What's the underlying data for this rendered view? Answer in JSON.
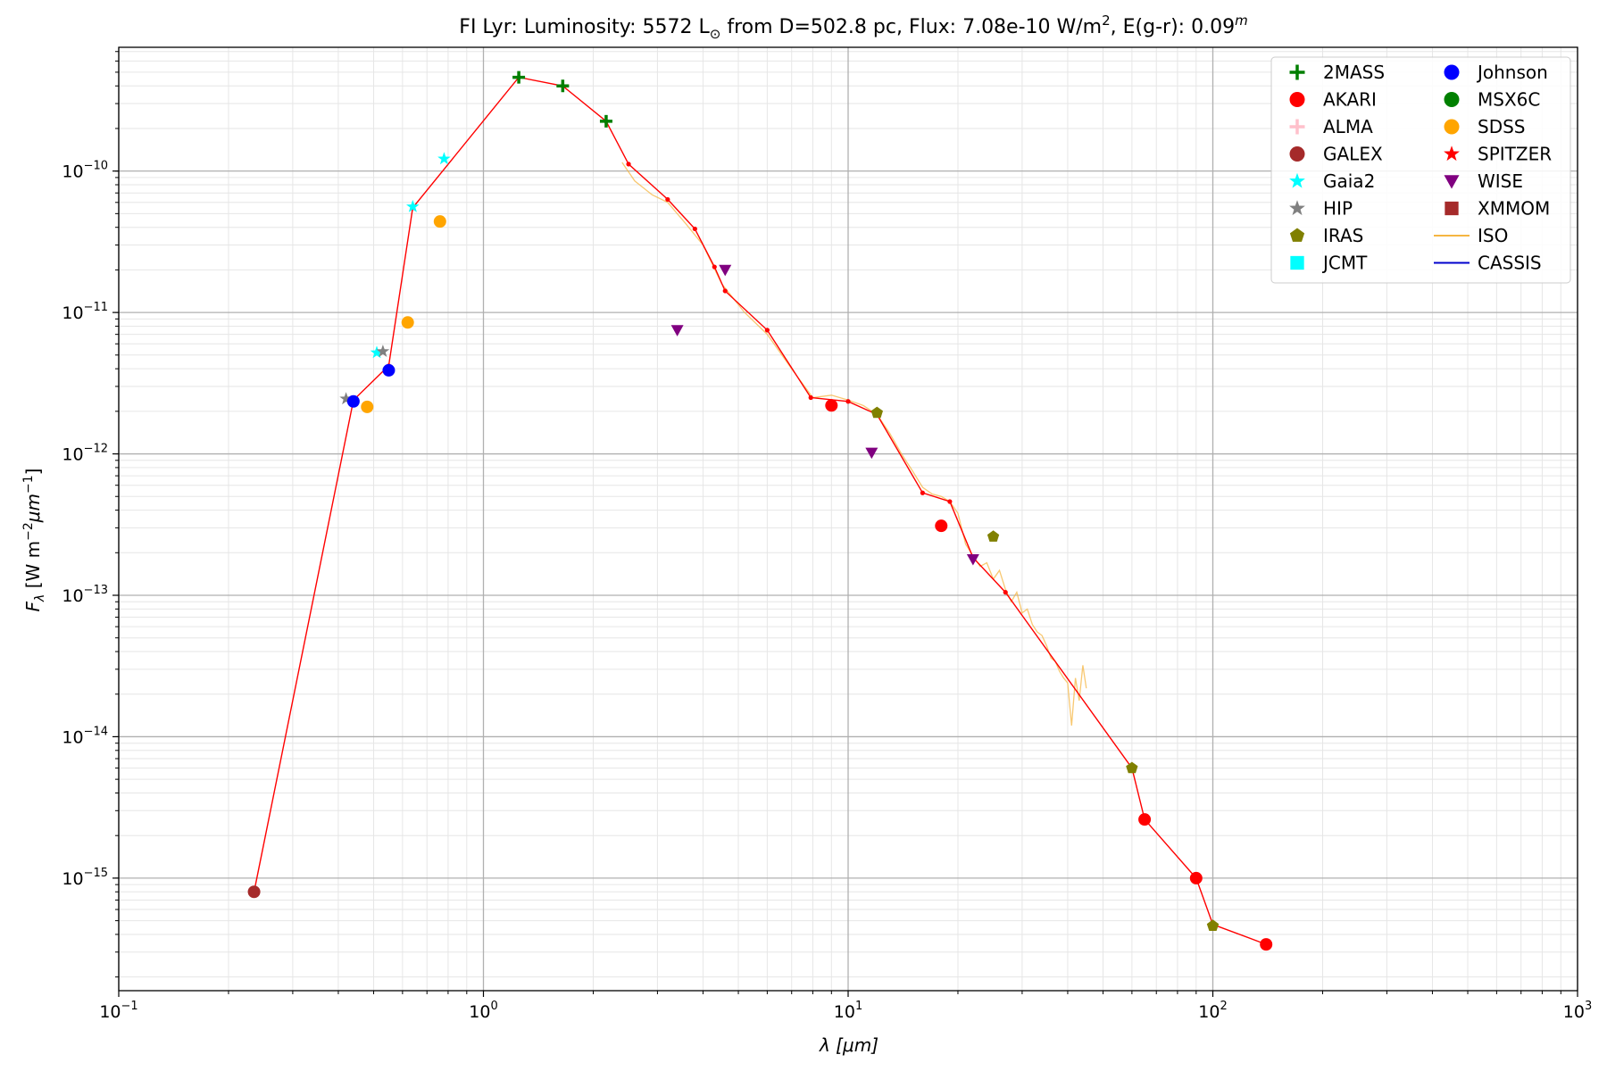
{
  "chart_data": {
    "type": "scatter",
    "title": {
      "main": "FI Lyr:  Luminosity: 5572 L",
      "sun_symbol": "⊙",
      "mid": " from D=502.8 pc, Flux: 7.08e-10 W/m",
      "sup1": "2",
      "mid2": ", E(g-r): 0.09",
      "sup2": "m"
    },
    "xlabel": "λ [μm]",
    "ylabel": "F_λ [W m^-2 μm^-1]",
    "xscale": "log",
    "yscale": "log",
    "xlim": [
      0.1,
      1000
    ],
    "ylim": [
      1.6e-16,
      7.5e-10
    ],
    "grid": true,
    "legend_position": "top-right",
    "x_ticks": [
      {
        "value": 0.1,
        "base": "10",
        "exp": "−1"
      },
      {
        "value": 1,
        "base": "10",
        "exp": "0"
      },
      {
        "value": 10,
        "base": "10",
        "exp": "1"
      },
      {
        "value": 100,
        "base": "10",
        "exp": "2"
      },
      {
        "value": 1000,
        "base": "10",
        "exp": "3"
      }
    ],
    "y_ticks": [
      {
        "value": 1e-15,
        "base": "10",
        "exp": "−15"
      },
      {
        "value": 1e-14,
        "base": "10",
        "exp": "−14"
      },
      {
        "value": 1e-13,
        "base": "10",
        "exp": "−13"
      },
      {
        "value": 1e-12,
        "base": "10",
        "exp": "−12"
      },
      {
        "value": 1e-11,
        "base": "10",
        "exp": "−11"
      },
      {
        "value": 1e-10,
        "base": "10",
        "exp": "−10"
      }
    ],
    "model_sed": {
      "color": "#ff0000",
      "x": [
        0.235,
        0.44,
        0.55,
        0.64,
        1.25,
        1.65,
        2.17,
        2.5,
        3.2,
        3.8,
        4.3,
        4.6,
        6.0,
        7.9,
        10.0,
        12.0,
        16.0,
        19.0,
        22.0,
        27.0,
        60.0,
        65.0,
        90.0,
        100.0,
        140.0
      ],
      "y": [
        8e-16,
        2.4e-12,
        4.2e-12,
        5.5e-11,
        4.6e-10,
        4e-10,
        2.25e-10,
        1.12e-10,
        6.3e-11,
        3.9e-11,
        2.1e-11,
        1.42e-11,
        7.5e-12,
        2.5e-12,
        2.35e-12,
        1.9e-12,
        5.3e-13,
        4.6e-13,
        1.85e-13,
        1.05e-13,
        6e-15,
        2.6e-15,
        1e-15,
        4.7e-16,
        3.4e-16
      ]
    },
    "iso_spectrum": {
      "color": "#f5b642",
      "x": [
        2.4,
        2.6,
        2.9,
        3.2,
        3.6,
        4.0,
        4.5,
        5.2,
        6.0,
        7.0,
        8.0,
        9.0,
        10.0,
        11.0,
        12.0,
        13.0,
        14.0,
        15.0,
        16.0,
        17.0,
        18.0,
        19.0,
        20.0,
        21.0,
        22.0,
        23.0,
        24.0,
        25.0,
        26.0,
        27.0,
        28.0,
        29.0,
        30.0,
        31.0,
        32.0,
        33.0,
        34.0,
        35.0,
        36.0,
        37.0,
        38.0,
        39.0,
        40.0,
        41.0,
        42.0,
        43.0,
        44.0,
        45.0
      ],
      "y": [
        1.15e-10,
        8.5e-11,
        6.8e-11,
        6e-11,
        4.2e-11,
        3e-11,
        1.6e-11,
        1e-11,
        7e-12,
        4e-12,
        2.5e-12,
        2.6e-12,
        2.4e-12,
        2.2e-12,
        1.9e-12,
        1.4e-12,
        1e-12,
        7.6e-13,
        5.8e-13,
        5.2e-13,
        5e-13,
        4.6e-13,
        3.8e-13,
        2.3e-13,
        1.9e-13,
        1.6e-13,
        1.7e-13,
        1.3e-13,
        1.5e-13,
        1.1e-13,
        9e-14,
        1.05e-13,
        7.5e-14,
        8e-14,
        6.2e-14,
        5.5e-14,
        5.2e-14,
        4.4e-14,
        3.6e-14,
        3.4e-14,
        2.9e-14,
        2.6e-14,
        2.4e-14,
        1.2e-14,
        2.6e-14,
        1.8e-14,
        3.2e-14,
        2.2e-14
      ]
    },
    "series": [
      {
        "name": "2MASS",
        "marker": "plus",
        "color": "#007f00",
        "x": [
          1.25,
          1.65,
          2.17
        ],
        "y": [
          4.6e-10,
          4e-10,
          2.25e-10
        ]
      },
      {
        "name": "AKARI",
        "marker": "circle",
        "color": "#ff0000",
        "x": [
          9.0,
          18.0,
          65.0,
          90.0,
          140.0
        ],
        "y": [
          2.2e-12,
          3.1e-13,
          2.6e-15,
          1e-15,
          3.4e-16
        ]
      },
      {
        "name": "ALMA",
        "marker": "plus",
        "color": "#ffc0cb",
        "x": [],
        "y": []
      },
      {
        "name": "GALEX",
        "marker": "circle",
        "color": "#a52a2a",
        "x": [
          0.235
        ],
        "y": [
          8e-16
        ]
      },
      {
        "name": "Gaia2",
        "marker": "star",
        "color": "#00ffff",
        "x": [
          0.51,
          0.64,
          0.78
        ],
        "y": [
          5.2e-12,
          5.6e-11,
          1.22e-10
        ]
      },
      {
        "name": "HIP",
        "marker": "star",
        "color": "#808080",
        "x": [
          0.42,
          0.53
        ],
        "y": [
          2.45e-12,
          5.3e-12
        ]
      },
      {
        "name": "IRAS",
        "marker": "pentagon",
        "color": "#808000",
        "x": [
          12.0,
          25.0,
          60.0,
          100.0
        ],
        "y": [
          1.95e-12,
          2.6e-13,
          6e-15,
          4.6e-16
        ]
      },
      {
        "name": "JCMT",
        "marker": "square",
        "color": "#00ffff",
        "x": [],
        "y": []
      },
      {
        "name": "Johnson",
        "marker": "circle",
        "color": "#0000ff",
        "x": [
          0.44,
          0.55
        ],
        "y": [
          2.35e-12,
          3.9e-12
        ]
      },
      {
        "name": "MSX6C",
        "marker": "circle",
        "color": "#008000",
        "x": [],
        "y": []
      },
      {
        "name": "SDSS",
        "marker": "circle",
        "color": "#ffa500",
        "x": [
          0.48,
          0.62,
          0.76
        ],
        "y": [
          2.15e-12,
          8.5e-12,
          4.4e-11
        ]
      },
      {
        "name": "SPITZER",
        "marker": "star",
        "color": "#ff0000",
        "x": [],
        "y": []
      },
      {
        "name": "WISE",
        "marker": "triangle-down",
        "color": "#800080",
        "x": [
          3.4,
          4.6,
          11.6,
          22.0
        ],
        "y": [
          7.5e-12,
          2e-11,
          1.02e-12,
          1.8e-13
        ]
      },
      {
        "name": "XMMOM",
        "marker": "square",
        "color": "#a52a2a",
        "x": [],
        "y": []
      }
    ],
    "legend": [
      {
        "label": "2MASS",
        "marker": "plus",
        "color": "#007f00"
      },
      {
        "label": "AKARI",
        "marker": "circle",
        "color": "#ff0000"
      },
      {
        "label": "ALMA",
        "marker": "plus",
        "color": "#ffc0cb"
      },
      {
        "label": "GALEX",
        "marker": "circle",
        "color": "#a52a2a"
      },
      {
        "label": "Gaia2",
        "marker": "star",
        "color": "#00ffff"
      },
      {
        "label": "HIP",
        "marker": "star",
        "color": "#808080"
      },
      {
        "label": "IRAS",
        "marker": "pentagon",
        "color": "#808000"
      },
      {
        "label": "JCMT",
        "marker": "square",
        "color": "#00ffff"
      },
      {
        "label": "Johnson",
        "marker": "circle",
        "color": "#0000ff"
      },
      {
        "label": "MSX6C",
        "marker": "circle",
        "color": "#008000"
      },
      {
        "label": "SDSS",
        "marker": "circle",
        "color": "#ffa500"
      },
      {
        "label": "SPITZER",
        "marker": "star",
        "color": "#ff0000"
      },
      {
        "label": "WISE",
        "marker": "triangle-down",
        "color": "#800080"
      },
      {
        "label": "XMMOM",
        "marker": "square",
        "color": "#a52a2a"
      },
      {
        "label": "ISO",
        "marker": "line",
        "color": "#f5b642"
      },
      {
        "label": "CASSIS",
        "marker": "line",
        "color": "#0000cc"
      }
    ]
  }
}
